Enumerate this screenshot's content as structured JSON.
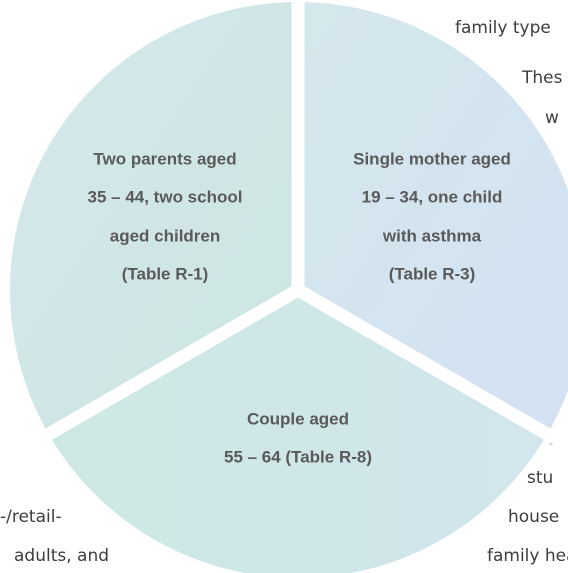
{
  "segments": [
    {
      "label": [
        "Two parents aged",
        "35 – 44, two school",
        "aged children",
        "(Table R-1)"
      ]
    },
    {
      "label": [
        "Single mother aged",
        "19 – 34, one child",
        "with asthma",
        "(Table R-3)"
      ]
    },
    {
      "label": [
        "Couple aged",
        "55 – 64 (Table R-8)"
      ]
    }
  ],
  "background_text": {
    "right": [
      "family type",
      "Thes",
      "w",
      "c",
      "stu",
      "house",
      "family heal"
    ],
    "left": [
      "-/retail-",
      "adults, and"
    ]
  }
}
